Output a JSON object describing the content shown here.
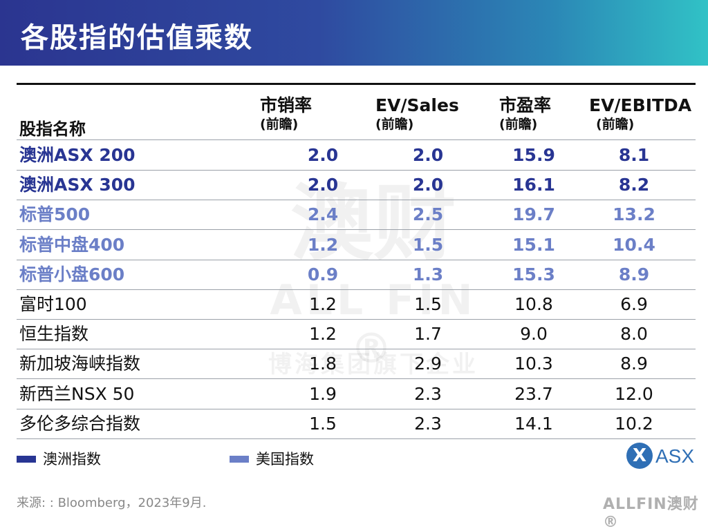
{
  "title": "各股指的估值乘数",
  "watermark": {
    "cn": "澳财",
    "en": "ALL FIN ®",
    "sub": "博海集团旗下企业"
  },
  "chart_data": {
    "type": "table",
    "columns": [
      {
        "line1": "股指名称",
        "line2": ""
      },
      {
        "line1": "市销率",
        "line2": "(前瞻)"
      },
      {
        "line1": "EV/Sales",
        "line2": "(前瞻)"
      },
      {
        "line1": "市盈率",
        "line2": "(前瞻)"
      },
      {
        "line1": "EV/EBITDA",
        "line2": "(前瞻)"
      }
    ],
    "rows": [
      {
        "name": "澳洲ASX 200",
        "group": "australia",
        "values": [
          "2.0",
          "2.0",
          "15.9",
          "8.1"
        ]
      },
      {
        "name": "澳洲ASX 300",
        "group": "australia",
        "values": [
          "2.0",
          "2.0",
          "16.1",
          "8.2"
        ]
      },
      {
        "name": "标普500",
        "group": "us",
        "values": [
          "2.4",
          "2.5",
          "19.7",
          "13.2"
        ]
      },
      {
        "name": "标普中盘400",
        "group": "us",
        "values": [
          "1.2",
          "1.5",
          "15.1",
          "10.4"
        ]
      },
      {
        "name": "标普小盘600",
        "group": "us",
        "values": [
          "0.9",
          "1.3",
          "15.3",
          "8.9"
        ]
      },
      {
        "name": "富时100",
        "group": "other",
        "values": [
          "1.2",
          "1.5",
          "10.8",
          "6.9"
        ]
      },
      {
        "name": "恒生指数",
        "group": "other",
        "values": [
          "1.2",
          "1.7",
          "9.0",
          "8.0"
        ]
      },
      {
        "name": "新加坡海峡指数",
        "group": "other",
        "values": [
          "1.8",
          "2.9",
          "10.3",
          "8.9"
        ]
      },
      {
        "name": "新西兰NSX 50",
        "group": "other",
        "values": [
          "1.9",
          "2.3",
          "23.7",
          "12.0"
        ]
      },
      {
        "name": "多伦多综合指数",
        "group": "other",
        "values": [
          "1.5",
          "2.3",
          "14.1",
          "10.2"
        ]
      }
    ],
    "legend": [
      {
        "label": "澳洲指数",
        "color": "#283593"
      },
      {
        "label": "美国指数",
        "color": "#6b7fc7"
      }
    ]
  },
  "logo": {
    "mark": "X",
    "text": "ASX",
    "icon": "asx-logo-icon"
  },
  "source": "来源: : Bloomberg，2023年9月.",
  "brand": "ALLFIN澳财®"
}
